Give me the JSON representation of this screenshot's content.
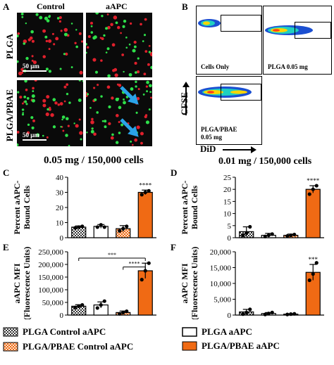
{
  "panelA": {
    "label": "A",
    "col_labels": [
      "Control",
      "aAPC"
    ],
    "row_labels": [
      "PLGA",
      "PLGA/PBAE"
    ],
    "scale": "50 μm"
  },
  "panelB": {
    "label": "B",
    "plots": [
      "Cells Only",
      "PLGA 0.05 mg",
      "PLGA/PBAE\n0.05 mg"
    ],
    "xaxis": "DiD",
    "yaxis": "CFSE"
  },
  "header_left": "0.05 mg / 150,000 cells",
  "header_right": "0.01 mg / 150,000 cells",
  "legend": {
    "items": [
      {
        "label": "PLGA Control aAPC",
        "style": "checker"
      },
      {
        "label": "PLGA aAPC",
        "style": "white"
      },
      {
        "label": "PLGA/PBAE Control aAPC",
        "style": "orange-checker"
      },
      {
        "label": "PLGA/PBAE aAPC",
        "style": "orange"
      }
    ]
  },
  "colors": {
    "orange": "#f06a14",
    "dark": "#333333",
    "light_orange": "#f7c6a0"
  },
  "chart_data": [
    {
      "panel": "C",
      "type": "bar",
      "categories": [
        "PLGA Control aAPC",
        "PLGA aAPC",
        "PLGA/PBAE Control aAPC",
        "PLGA/PBAE aAPC"
      ],
      "values": [
        7,
        7.5,
        6,
        30
      ],
      "errors": [
        0.8,
        1.2,
        2,
        1.5
      ],
      "points": [
        [
          6.5,
          7,
          7.5
        ],
        [
          7,
          8.5,
          7
        ],
        [
          4.5,
          6,
          7.5
        ],
        [
          28.5,
          30,
          31
        ]
      ],
      "ylabel": "Percent aAPC-\nBound Cells",
      "ylim": [
        0,
        40
      ],
      "yticks": [
        "0",
        "10",
        "20",
        "30",
        "40"
      ],
      "sig": "****"
    },
    {
      "panel": "D",
      "type": "bar",
      "categories": [
        "PLGA Control aAPC",
        "PLGA aAPC",
        "PLGA/PBAE Control aAPC",
        "PLGA/PBAE aAPC"
      ],
      "values": [
        2.5,
        1,
        1,
        20
      ],
      "errors": [
        2,
        0.8,
        0.5,
        1.5
      ],
      "points": [
        [
          1,
          2,
          4.5
        ],
        [
          0.5,
          1,
          1.5
        ],
        [
          0.7,
          1,
          1.3
        ],
        [
          18,
          20,
          21.5
        ]
      ],
      "ylabel": "Percent aAPC-\nBound Cells",
      "ylim": [
        0,
        25
      ],
      "yticks": [
        "0",
        "5",
        "10",
        "15",
        "20",
        "25"
      ],
      "sig": "****"
    },
    {
      "panel": "E",
      "type": "bar",
      "categories": [
        "PLGA Control aAPC",
        "PLGA aAPC",
        "PLGA/PBAE Control aAPC",
        "PLGA/PBAE aAPC"
      ],
      "values": [
        35000,
        40000,
        10000,
        175000
      ],
      "errors": [
        6000,
        12000,
        6000,
        30000
      ],
      "points": [
        [
          30000,
          35000,
          40000
        ],
        [
          28000,
          40000,
          55000
        ],
        [
          5000,
          10000,
          15000
        ],
        [
          140000,
          175000,
          205000
        ]
      ],
      "ylabel": "aAPC MFI\n(Fluorescence Units)",
      "ylim": [
        0,
        250000
      ],
      "yticks": [
        "0",
        "50,000",
        "100,000",
        "150,000",
        "200,000",
        "250,000"
      ],
      "brackets": [
        {
          "from": 0,
          "to": 3,
          "label": "***"
        },
        {
          "from": 2,
          "to": 3,
          "label": "****"
        }
      ]
    },
    {
      "panel": "F",
      "type": "bar",
      "categories": [
        "PLGA Control aAPC",
        "PLGA aAPC",
        "PLGA/PBAE Control aAPC",
        "PLGA/PBAE aAPC"
      ],
      "values": [
        1000,
        500,
        300,
        13500
      ],
      "errors": [
        800,
        300,
        100,
        2500
      ],
      "points": [
        [
          300,
          800,
          1800
        ],
        [
          200,
          500,
          800
        ],
        [
          200,
          300,
          400
        ],
        [
          11000,
          13000,
          16500
        ]
      ],
      "ylabel": "aAPC MFI\n(Fluorescence Units)",
      "ylim": [
        0,
        20000
      ],
      "yticks": [
        "0",
        "5,000",
        "10,000",
        "15,000",
        "20,000"
      ],
      "sig": "***"
    }
  ]
}
